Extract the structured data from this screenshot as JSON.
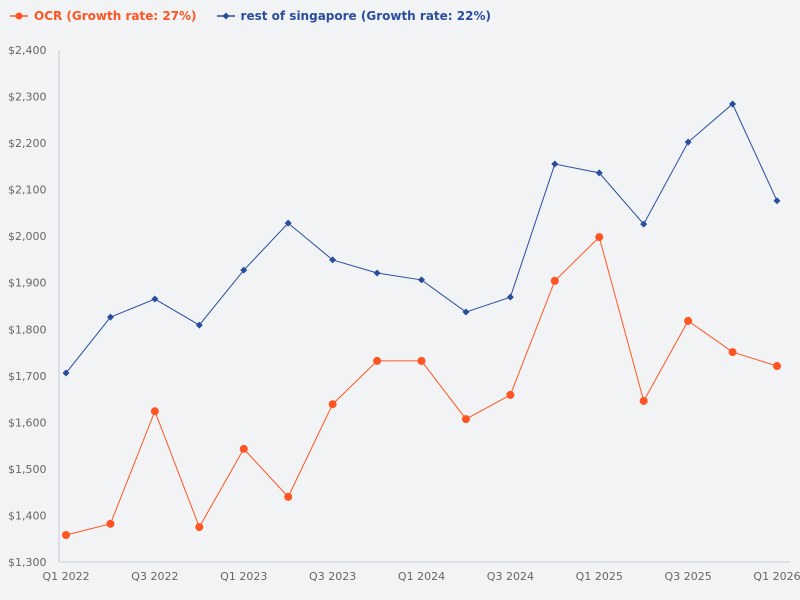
{
  "chart_data": {
    "type": "line",
    "title": "",
    "xlabel": "",
    "ylabel": "",
    "ylim": [
      1300,
      2400
    ],
    "yticks": [
      1300,
      1400,
      1500,
      1600,
      1700,
      1800,
      1900,
      2000,
      2100,
      2200,
      2300,
      2400
    ],
    "ytick_labels": [
      "$1,300",
      "$1,400",
      "$1,500",
      "$1,600",
      "$1,700",
      "$1,800",
      "$1,900",
      "$2,000",
      "$2,100",
      "$2,200",
      "$2,300",
      "$2,400"
    ],
    "x": [
      "Q1 2022",
      "Q2 2022",
      "Q3 2022",
      "Q4 2022",
      "Q1 2023",
      "Q2 2023",
      "Q3 2023",
      "Q4 2023",
      "Q1 2024",
      "Q2 2024",
      "Q3 2024",
      "Q4 2024",
      "Q1 2025",
      "Q2 2025",
      "Q3 2025",
      "Q4 2025",
      "Q1 2026"
    ],
    "xtick_labels": [
      "Q1 2022",
      "Q3 2022",
      "Q1 2023",
      "Q3 2023",
      "Q1 2024",
      "Q3 2024",
      "Q1 2025",
      "Q3 2025",
      "Q1 2026"
    ],
    "legend_position": "top-left",
    "grid": false,
    "series": [
      {
        "name": "OCR (Growth rate: 27%)",
        "color": "#ff5522",
        "marker": "circle",
        "values": [
          1358,
          1382,
          1624,
          1375,
          1543,
          1440,
          1639,
          1732,
          1732,
          1607,
          1659,
          1904,
          1998,
          1646,
          1818,
          1751,
          1721
        ]
      },
      {
        "name": "rest of singapore (Growth rate: 22%)",
        "color": "#2a4d9c",
        "marker": "diamond",
        "values": [
          1706,
          1826,
          1865,
          1809,
          1927,
          2028,
          1949,
          1921,
          1906,
          1837,
          1869,
          2155,
          2136,
          2026,
          2202,
          2284,
          2076
        ]
      }
    ]
  }
}
